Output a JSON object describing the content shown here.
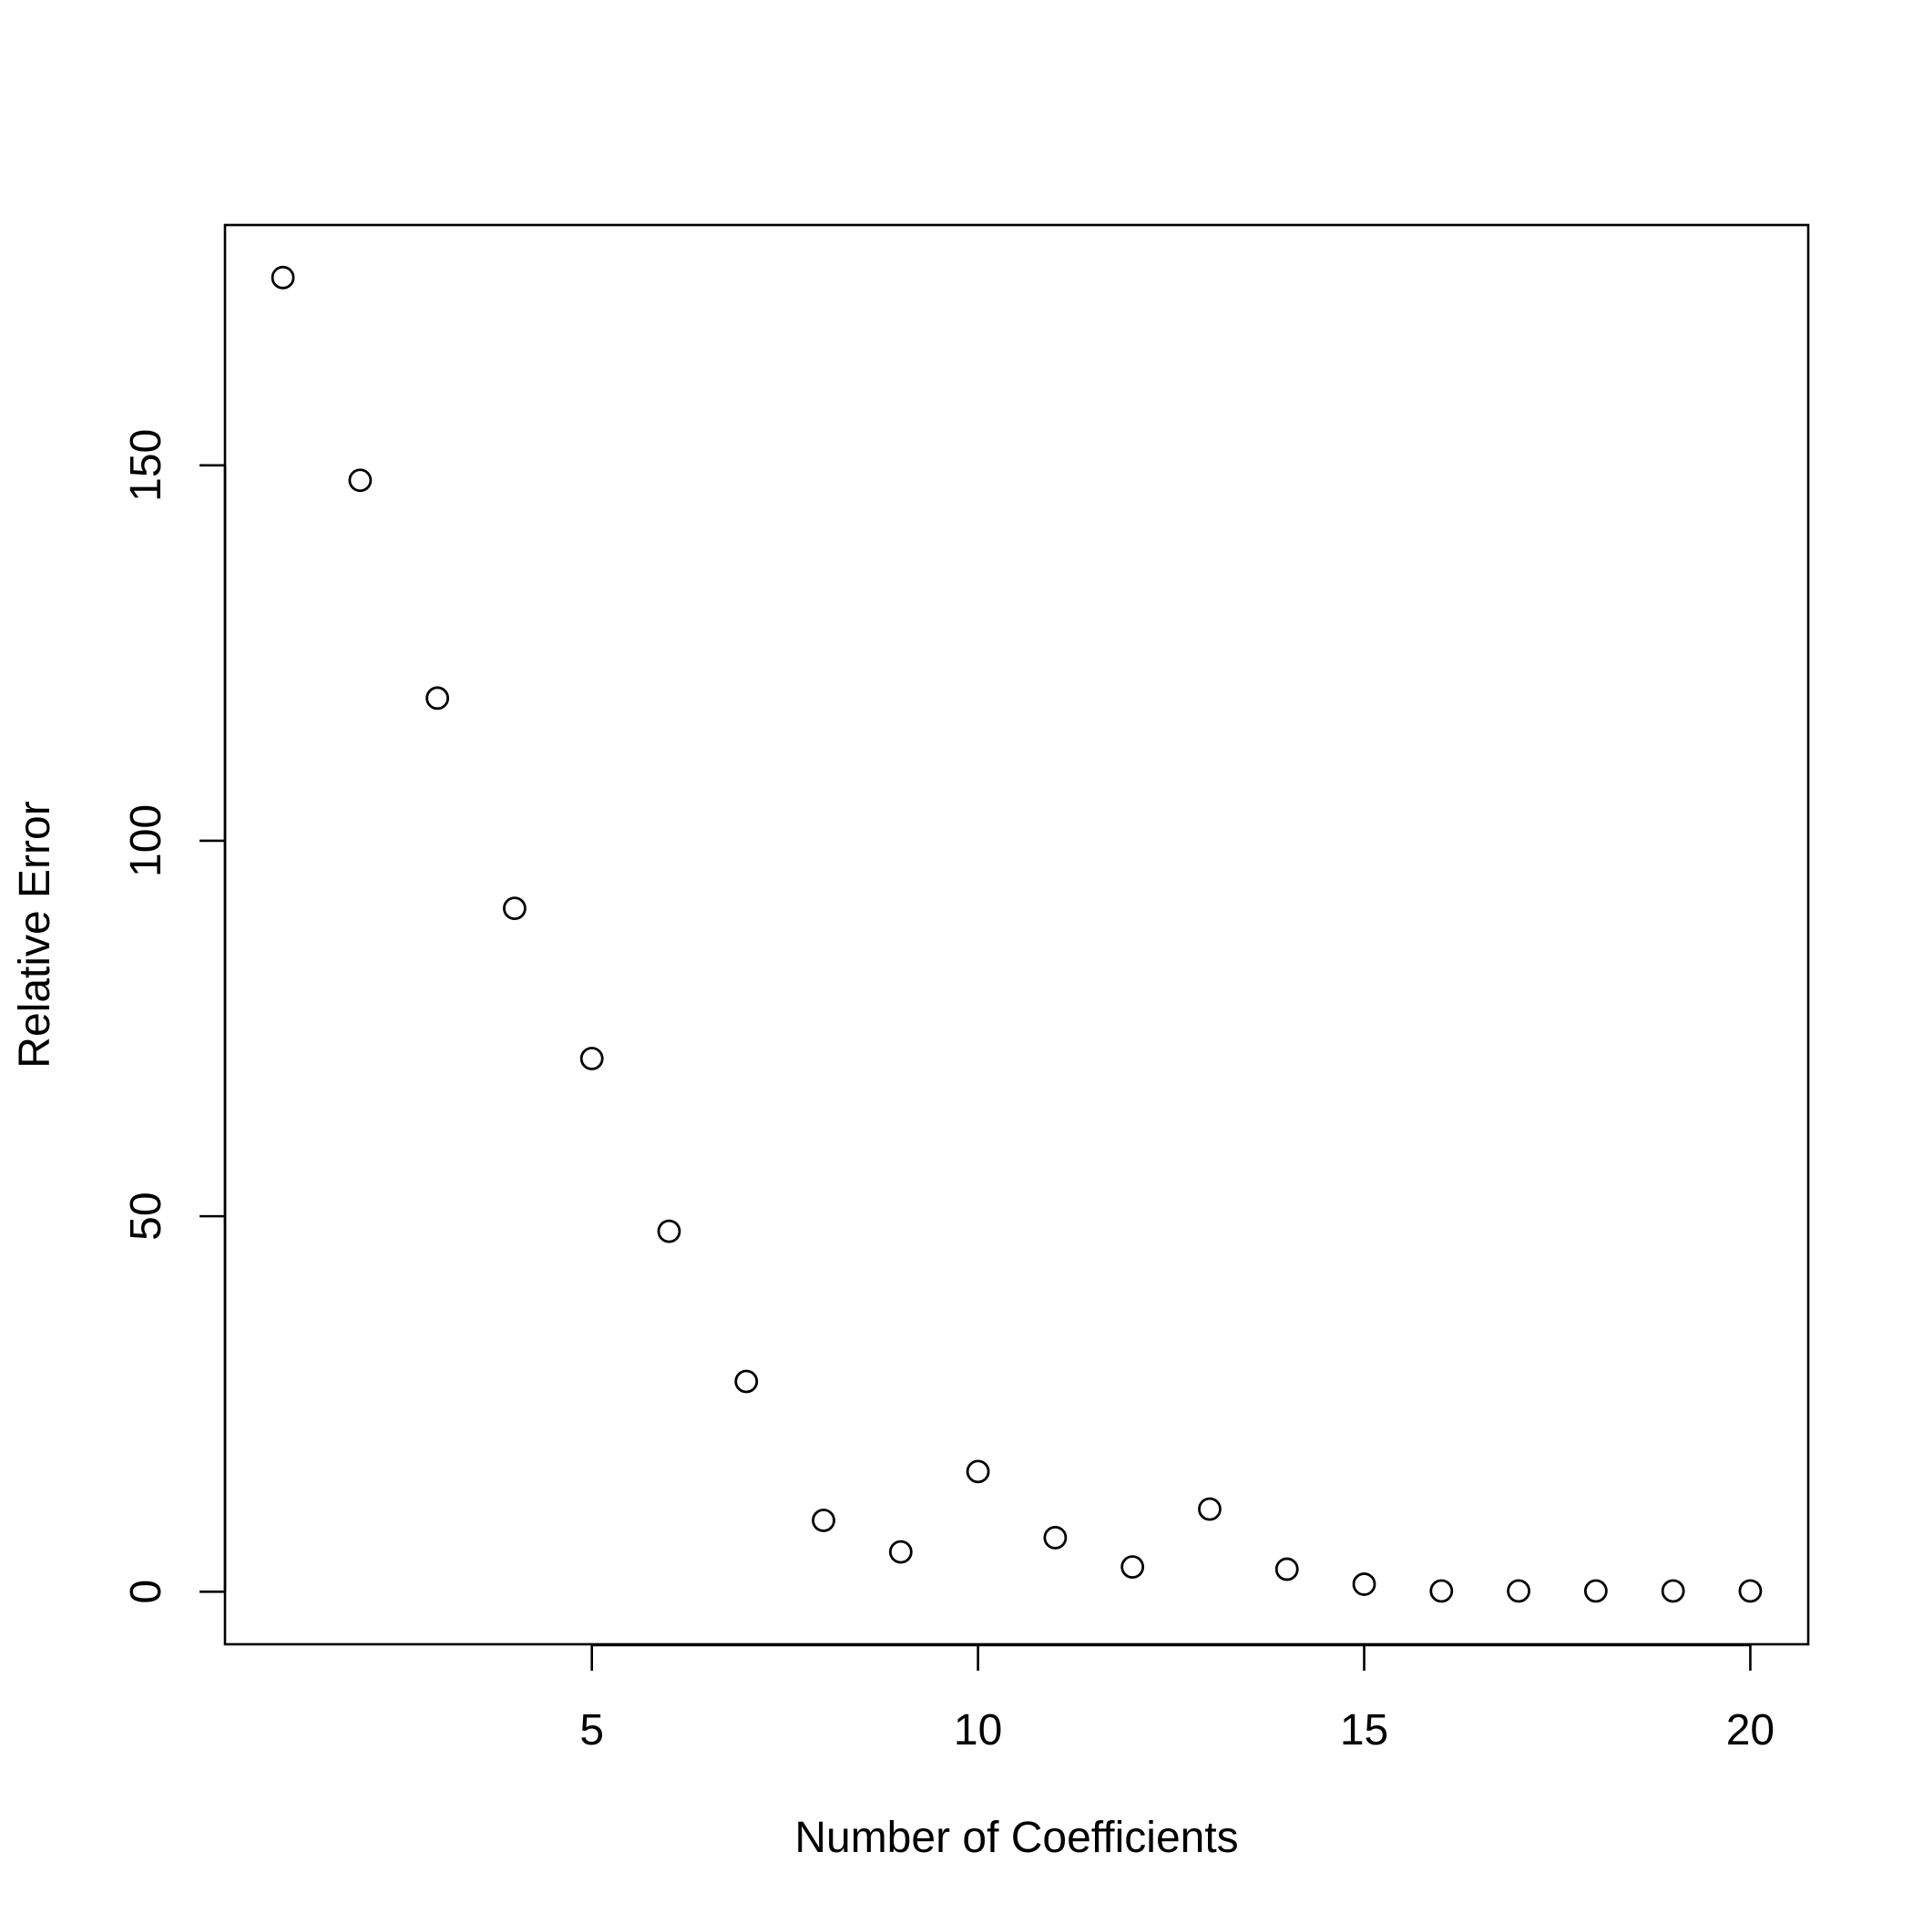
{
  "chart_data": {
    "type": "scatter",
    "title": "",
    "xlabel": "Number of Coefficients",
    "ylabel": "Relative Error",
    "x": [
      1,
      2,
      3,
      4,
      5,
      6,
      7,
      8,
      9,
      10,
      11,
      12,
      13,
      14,
      15,
      16,
      17,
      18,
      19,
      20
    ],
    "y": [
      175,
      148,
      119,
      91,
      71,
      48,
      28,
      9.5,
      5.3,
      16,
      7.2,
      3.3,
      11,
      3,
      1,
      0.1,
      0.1,
      0.1,
      0.1,
      0.1
    ],
    "xlim": [
      0.25,
      20.75
    ],
    "ylim": [
      -7,
      182
    ],
    "x_ticks": [
      5,
      10,
      15,
      20
    ],
    "x_tick_labels": [
      "5",
      "10",
      "15",
      "20"
    ],
    "y_ticks": [
      0,
      50,
      100,
      150
    ],
    "y_tick_labels": [
      "0",
      "50",
      "100",
      "150"
    ],
    "marker": "open-circle",
    "grid": false,
    "legend": "none",
    "colors": {
      "background": "#ffffff",
      "foreground": "#000000"
    }
  }
}
